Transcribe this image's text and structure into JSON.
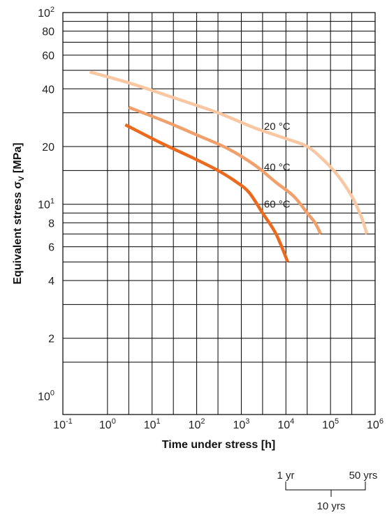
{
  "chart_data": {
    "type": "line",
    "xlabel": "Time under stress  [h]",
    "ylabel_main": "Equivalent stress σ",
    "ylabel_sub": "V",
    "ylabel_unit": "  [MPa]",
    "x_scale": "log",
    "y_scale": "log",
    "xlim": [
      0.1,
      1000000
    ],
    "ylim": [
      0.8,
      100
    ],
    "grid": true,
    "x_ticks": [
      {
        "base": "10",
        "exp": "-1",
        "value": 0.1
      },
      {
        "base": "10",
        "exp": "0",
        "value": 1
      },
      {
        "base": "10",
        "exp": "1",
        "value": 10
      },
      {
        "base": "10",
        "exp": "2",
        "value": 100
      },
      {
        "base": "10",
        "exp": "3",
        "value": 1000
      },
      {
        "base": "10",
        "exp": "4",
        "value": 10000
      },
      {
        "base": "10",
        "exp": "5",
        "value": 100000
      },
      {
        "base": "10",
        "exp": "6",
        "value": 1000000
      }
    ],
    "y_ticks": [
      {
        "base": "10",
        "exp": "0",
        "value": 1
      },
      {
        "base": "2",
        "exp": "",
        "value": 2
      },
      {
        "base": "4",
        "exp": "",
        "value": 4
      },
      {
        "base": "6",
        "exp": "",
        "value": 6
      },
      {
        "base": "8",
        "exp": "",
        "value": 8
      },
      {
        "base": "10",
        "exp": "1",
        "value": 10
      },
      {
        "base": "20",
        "exp": "",
        "value": 20
      },
      {
        "base": "40",
        "exp": "",
        "value": 40
      },
      {
        "base": "60",
        "exp": "",
        "value": 60
      },
      {
        "base": "80",
        "exp": "",
        "value": 80
      },
      {
        "base": "10",
        "exp": "2",
        "value": 100
      }
    ],
    "x_grid": [
      0.1,
      1,
      3,
      10,
      30,
      100,
      300,
      1000,
      3000,
      10000,
      30000,
      100000,
      300000,
      1000000
    ],
    "y_grid": [
      0.8,
      1.5,
      2,
      3,
      4,
      5,
      6,
      7,
      8,
      9,
      10,
      15,
      20,
      30,
      40,
      50,
      60,
      70,
      80,
      90,
      100
    ],
    "series": [
      {
        "name": "20 °C",
        "color": "#f9c7a2",
        "points": [
          [
            0.4,
            49
          ],
          [
            3,
            43
          ],
          [
            30,
            36
          ],
          [
            300,
            30
          ],
          [
            2000,
            25
          ],
          [
            10000,
            22
          ],
          [
            30000,
            20
          ],
          [
            70000,
            17
          ],
          [
            150000,
            14
          ],
          [
            300000,
            11
          ],
          [
            500000,
            8.5
          ],
          [
            650000,
            7
          ]
        ]
      },
      {
        "name": "40 °C",
        "color": "#f1a06c",
        "points": [
          [
            3,
            32
          ],
          [
            20,
            27
          ],
          [
            100,
            23
          ],
          [
            500,
            19.5
          ],
          [
            2000,
            16
          ],
          [
            6000,
            13
          ],
          [
            15000,
            11
          ],
          [
            30000,
            9
          ],
          [
            45000,
            8
          ],
          [
            60000,
            7
          ]
        ]
      },
      {
        "name": "60 °C",
        "color": "#ec6a1e",
        "points": [
          [
            2.5,
            26
          ],
          [
            15,
            21
          ],
          [
            80,
            17.5
          ],
          [
            300,
            15
          ],
          [
            800,
            13
          ],
          [
            1500,
            11.5
          ],
          [
            3000,
            9
          ],
          [
            6000,
            7
          ],
          [
            11000,
            5
          ]
        ]
      }
    ],
    "series_label_positions": [
      {
        "name": "20 °C",
        "x": 3000,
        "y": 24.5
      },
      {
        "name": "40 °C",
        "x": 3000,
        "y": 15
      },
      {
        "name": "60 °C",
        "x": 3000,
        "y": 9.6
      }
    ],
    "time_scale": {
      "left_label": "1 yr",
      "right_label": "50 yrs",
      "bottom_label": "10 yrs"
    }
  }
}
